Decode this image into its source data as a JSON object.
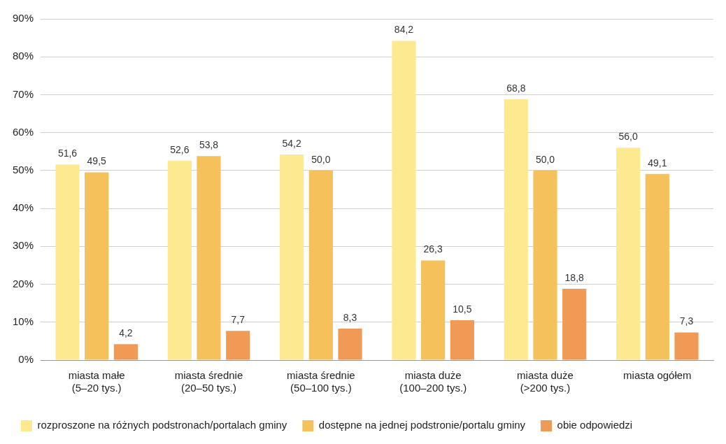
{
  "chart_data": {
    "type": "bar",
    "categories": [
      "miasta małe\n(5–20 tys.)",
      "miasta średnie\n(20–50 tys.)",
      "miasta średnie\n(50–100 tys.)",
      "miasta duże\n(100–200 tys.)",
      "miasta duże\n(>200 tys.)",
      "miasta ogółem"
    ],
    "series": [
      {
        "name": "rozproszone na różnych podstronach/portalach gminy",
        "color": "#fde98f",
        "values": [
          51.6,
          52.6,
          54.2,
          84.2,
          68.8,
          56.0
        ],
        "value_labels": [
          "51,6",
          "52,6",
          "54,2",
          "84,2",
          "68,8",
          "56,0"
        ]
      },
      {
        "name": "dostępne na jednej podstronie/portalu gminy",
        "color": "#f4c15a",
        "values": [
          49.5,
          53.8,
          50.0,
          26.3,
          50.0,
          49.1
        ],
        "value_labels": [
          "49,5",
          "53,8",
          "50,0",
          "26,3",
          "50,0",
          "49,1"
        ]
      },
      {
        "name": "obie odpowiedzi",
        "color": "#f19a55",
        "values": [
          4.2,
          7.7,
          8.3,
          10.5,
          18.8,
          7.3
        ],
        "value_labels": [
          "4,2",
          "7,7",
          "8,3",
          "10,5",
          "18,8",
          "7,3"
        ]
      }
    ],
    "ylim": [
      0,
      90
    ],
    "yticks": [
      {
        "value": 0,
        "label": "0%"
      },
      {
        "value": 10,
        "label": "10%"
      },
      {
        "value": 20,
        "label": "20%"
      },
      {
        "value": 30,
        "label": "30%"
      },
      {
        "value": 40,
        "label": "40%"
      },
      {
        "value": 50,
        "label": "50%"
      },
      {
        "value": 60,
        "label": "60%"
      },
      {
        "value": 70,
        "label": "70%"
      },
      {
        "value": 80,
        "label": "80%"
      },
      {
        "value": 90,
        "label": "90%"
      }
    ],
    "grid": "y",
    "legend": "bottom"
  }
}
